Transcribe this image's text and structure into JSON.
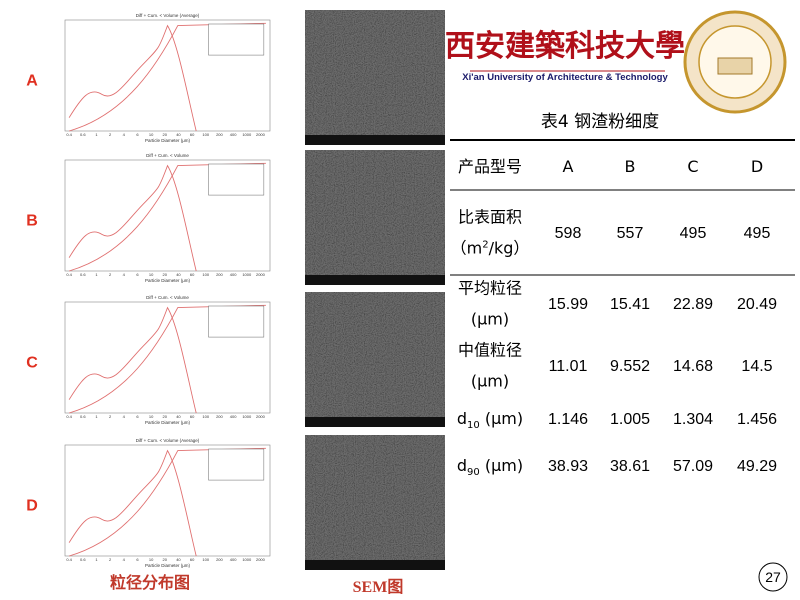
{
  "logo": {
    "name_cn": "西安建築科技大學",
    "name_en": "Xi'an University of Architecture & Technology"
  },
  "samples": [
    {
      "label": "A",
      "chart": {
        "title": "Diff + Cum. < Volume (Average)",
        "x_label": "Particle Diameter (μm)"
      }
    },
    {
      "label": "B",
      "chart": {
        "title": "Diff + Cum. < Volume",
        "x_label": "Particle Diameter (μm)"
      }
    },
    {
      "label": "C",
      "chart": {
        "title": "Diff + Cum. < Volume",
        "x_label": "Particle Diameter (μm)"
      }
    },
    {
      "label": "D",
      "chart": {
        "title": "Diff + Cum. < Volume (Average)",
        "x_label": "Particle Diameter (μm)"
      }
    }
  ],
  "chart_xticks": [
    "0.4",
    "0.6",
    "1",
    "2",
    "4",
    "6",
    "10",
    "20",
    "40",
    "60",
    "100",
    "200",
    "400",
    "1000",
    "2000"
  ],
  "captions": {
    "psd": "粒径分布图",
    "sem": "SEM图"
  },
  "table": {
    "title": "表4  钢渣粉细度",
    "header": [
      "产品型号",
      "A",
      "B",
      "C",
      "D"
    ],
    "rows": [
      {
        "label": [
          {
            "pre": "比表面积"
          },
          {
            "pre": "（m",
            "sup": "2",
            "post": "/kg）"
          }
        ],
        "values": [
          598,
          557,
          495,
          495
        ]
      },
      {
        "label": [
          {
            "pre": "平均粒径"
          },
          {
            "pre": "(μm)"
          }
        ],
        "values": [
          15.99,
          15.41,
          22.89,
          20.49
        ]
      },
      {
        "label": [
          {
            "pre": "中值粒径"
          },
          {
            "pre": "(μm)"
          }
        ],
        "values": [
          11.01,
          9.552,
          14.68,
          14.5
        ]
      },
      {
        "label": [
          {
            "pre": "d",
            "sub": "10",
            "post": " (μm)"
          }
        ],
        "values": [
          1.146,
          1.005,
          1.304,
          1.456
        ]
      },
      {
        "label": [
          {
            "pre": "d",
            "sub": "90",
            "post": " (μm)"
          }
        ],
        "values": [
          38.93,
          38.61,
          57.09,
          49.29
        ]
      }
    ]
  },
  "page_number": "27"
}
